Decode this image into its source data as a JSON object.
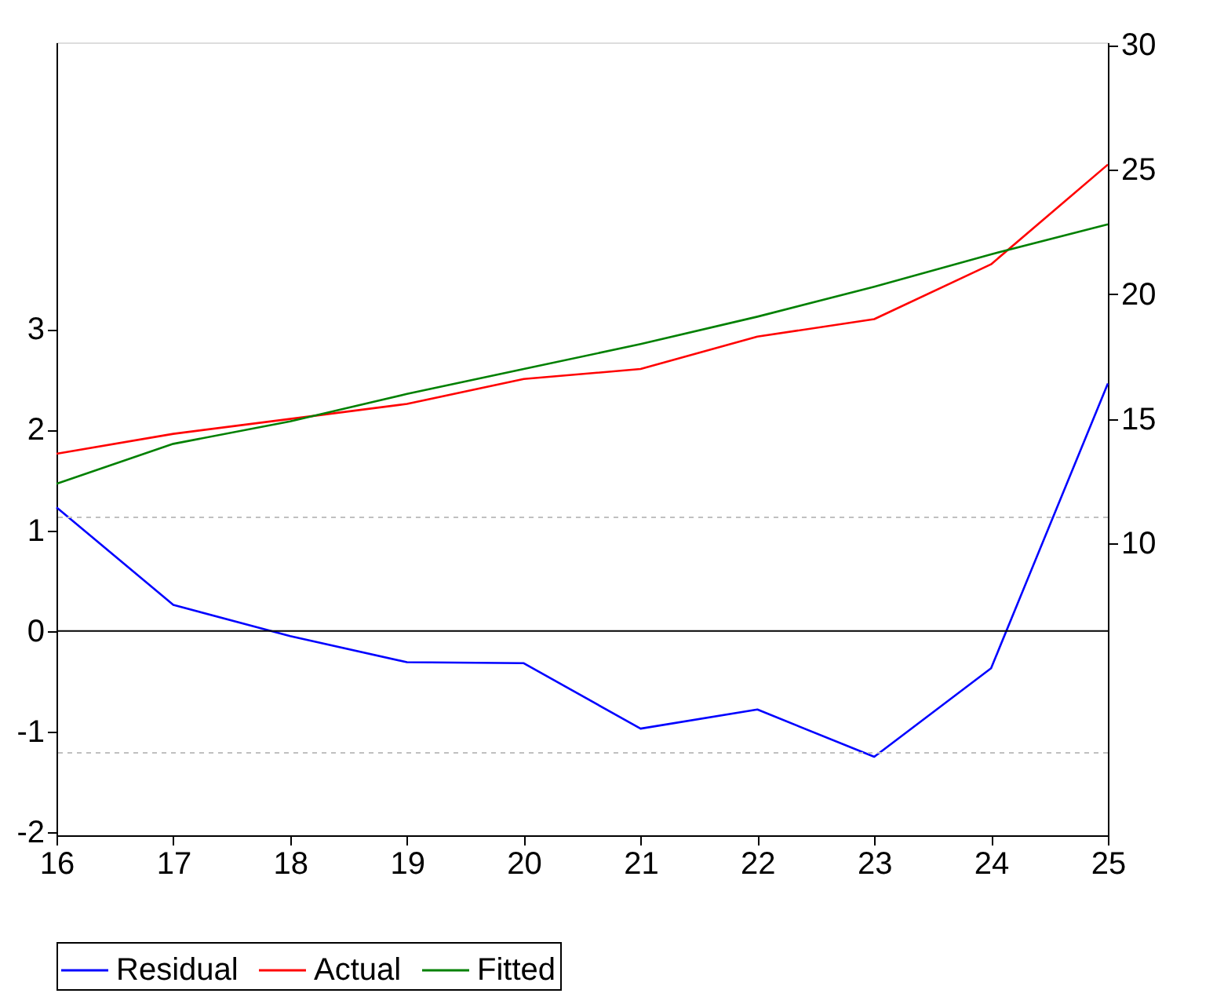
{
  "chart_data": {
    "type": "line",
    "x": [
      16,
      17,
      18,
      19,
      20,
      21,
      22,
      23,
      24,
      25
    ],
    "xlim": [
      16,
      25
    ],
    "xticks": [
      16,
      17,
      18,
      19,
      20,
      21,
      22,
      23,
      24,
      25
    ],
    "ylim": [
      -2.03,
      5.85
    ],
    "yticks": [
      -2,
      -1,
      0,
      1,
      2,
      3
    ],
    "y2lim": [
      -1.7,
      30.1
    ],
    "y2ticks": [
      10,
      15,
      20,
      25,
      30
    ],
    "series": [
      {
        "name": "Residual",
        "color": "#0000ff",
        "values": [
          1.23,
          0.26,
          -0.05,
          -0.31,
          -0.32,
          -0.97,
          -0.78,
          -1.25,
          -0.37,
          2.46
        ]
      },
      {
        "name": "Actual",
        "color": "#ff0000",
        "axis": "y2",
        "values": [
          13.6,
          14.4,
          15.0,
          15.6,
          16.6,
          17.0,
          18.3,
          19.0,
          21.2,
          25.2
        ]
      },
      {
        "name": "Fitted",
        "color": "#008000",
        "axis": "y2",
        "values": [
          12.4,
          14.0,
          14.9,
          16.0,
          17.0,
          18.0,
          19.1,
          20.3,
          21.6,
          22.8
        ]
      }
    ],
    "ref_lines": [
      {
        "axis": "y",
        "value": 0,
        "color": "#000000",
        "line_style": "solid"
      },
      {
        "axis": "y",
        "value": 1.13,
        "color": "#c0c0c0",
        "line_style": "dashed"
      },
      {
        "axis": "y",
        "value": -1.21,
        "color": "#c0c0c0",
        "line_style": "dashed"
      }
    ],
    "legend": "bottom",
    "grid": false,
    "line_style": "solid",
    "marker": "none"
  }
}
